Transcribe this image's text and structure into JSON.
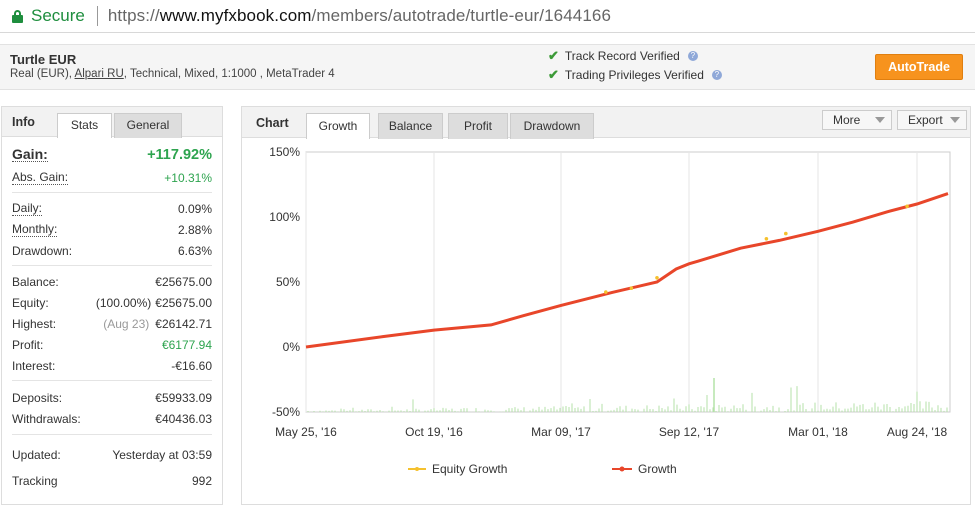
{
  "browser": {
    "secure_label": "Secure",
    "url_scheme": "https://",
    "url_host": "www.myfxbook.com",
    "url_path": "/members/autotrade/turtle-eur/1644166"
  },
  "header": {
    "system_name": "Turtle EUR",
    "desc_prefix": "Real (EUR), ",
    "broker": "Alpari RU",
    "desc_suffix": ", Technical, Mixed, 1:1000 , MetaTrader 4",
    "track_record": "Track Record Verified",
    "trading_privileges": "Trading Privileges Verified",
    "autotrade_button": "AutoTrade"
  },
  "left_panel": {
    "tab_label": "Info",
    "tabs": [
      "Stats",
      "General"
    ],
    "gain_label": "Gain:",
    "gain_value": "+117.92%",
    "abs_gain_label": "Abs. Gain:",
    "abs_gain_value": "+10.31%",
    "daily_label": "Daily:",
    "daily_value": "0.09%",
    "monthly_label": "Monthly:",
    "monthly_value": "2.88%",
    "drawdown_label": "Drawdown:",
    "drawdown_value": "6.63%",
    "balance_label": "Balance:",
    "balance_value": "€25675.00",
    "equity_label": "Equity:",
    "equity_pct": "(100.00%)",
    "equity_value": "€25675.00",
    "highest_label": "Highest:",
    "highest_date": "(Aug 23)",
    "highest_value": "€26142.71",
    "profit_label": "Profit:",
    "profit_value": "€6177.94",
    "interest_label": "Interest:",
    "interest_value": "-€16.60",
    "deposits_label": "Deposits:",
    "deposits_value": "€59933.09",
    "withdrawals_label": "Withdrawals:",
    "withdrawals_value": "€40436.03",
    "updated_label": "Updated:",
    "updated_value": "Yesterday at 03:59",
    "tracking_label": "Tracking",
    "tracking_value": "992"
  },
  "chart_panel": {
    "tab_label": "Chart",
    "tabs": [
      "Growth",
      "Balance",
      "Profit",
      "Drawdown"
    ],
    "more_label": "More",
    "export_label": "Export"
  },
  "colors": {
    "growth_line": "#e8462a",
    "equity_marker": "#f5c12e",
    "volume_bars": "#b4e2a8",
    "gain_green": "#2ea44f",
    "autotrade_orange": "#f7931e"
  },
  "chart_data": {
    "type": "line",
    "title": "",
    "xlabel": "",
    "ylabel": "",
    "ylim": [
      -50,
      150
    ],
    "y_ticks": [
      "150%",
      "100%",
      "50%",
      "0%",
      "-50%"
    ],
    "y_tick_values": [
      150,
      100,
      50,
      0,
      -50
    ],
    "x_tick_labels": [
      "May 25, '16",
      "Oct 19, '16",
      "Mar 09, '17",
      "Sep 12, '17",
      "Mar 01, '18",
      "Aug 24, '18"
    ],
    "grid": "vertical",
    "legend_position": "bottom",
    "series": [
      {
        "name": "Growth",
        "x": [
          "May 25, '16",
          "Aug '16",
          "Oct 19, '16",
          "Dec '16",
          "Jan '17",
          "Mar 09, '17",
          "May '17",
          "Jul '17",
          "Aug '17",
          "Sep 12, '17",
          "Sep '17",
          "Nov '17",
          "Jan '18",
          "Mar 01, '18",
          "May '18",
          "Jul '18",
          "Aug 24, '18",
          "Sep '18"
        ],
        "values": [
          0,
          8,
          13,
          17,
          24,
          32,
          42,
          50,
          60,
          64,
          66,
          76,
          82,
          89,
          96,
          104,
          110,
          118
        ]
      },
      {
        "name": "Equity Growth",
        "x": [
          "Apr '17",
          "May '17",
          "Jun '17",
          "Feb '18",
          "Mar '18",
          "Aug '18"
        ],
        "values": [
          43,
          46,
          54,
          84,
          88,
          109
        ]
      }
    ]
  }
}
